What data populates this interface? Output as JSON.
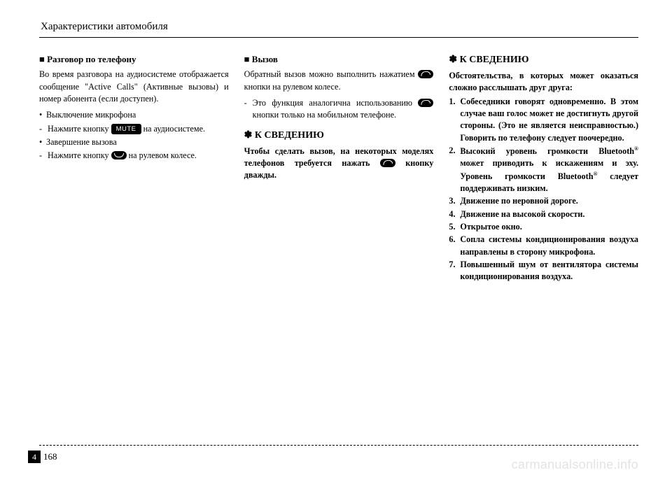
{
  "header": "Характеристики автомобиля",
  "col1": {
    "subhead": "■ Разговор по телефону",
    "intro": "Во время разговора на аудиосистеме отображается сообщение \"Active Calls\" (Активные вызовы) и номер абонента (если доступен).",
    "bullet1": "Выключение микрофона",
    "dash1_before": "Нажмите кнопку ",
    "dash1_after": " на аудиосистеме.",
    "mute": "MUTE",
    "bullet2": "Завершение вызова",
    "dash2_before": "Нажмите кнопку ",
    "dash2_after": " на рулевом колесе."
  },
  "col2": {
    "subhead": "■ Вызов",
    "intro_before": "Обратный вызов можно выполнить нажатием ",
    "intro_after": " кнопки на рулевом колесе.",
    "dash_before": "Это функция аналогична использованию ",
    "dash_after": " кнопки только на мобильном телефоне.",
    "note_head": "✽ К СВЕДЕНИЮ",
    "note_body_before": "Чтобы сделать вызов, на некоторых моделях телефонов требуется нажать ",
    "note_body_after": " кнопку дважды."
  },
  "col3": {
    "note_head": "✽ К СВЕДЕНИЮ",
    "lead": "Обстоятельства, в которых может оказаться сложно расслышать друг друга:",
    "items": [
      "Собеседники говорят одновременно. В этом случае ваш голос может не достигнуть другой стороны. (Это не является неисправностью.) Говорить по телефону следует поочередно.",
      "Высокий уровень громкости Bluetooth® может приводить к искажениям и эху. Уровень громкости Bluetooth® следует поддерживать низким.",
      "Движение по неровной дороге.",
      "Движение на высокой скорости.",
      "Открытое окно.",
      "Сопла системы кондиционирования воздуха направлены в сторону микрофона.",
      "Повышенный шум от вентилятора системы кондиционирования воздуха."
    ]
  },
  "page_chapter": "4",
  "page_number": "168",
  "watermark": "carmanualsonline.info"
}
